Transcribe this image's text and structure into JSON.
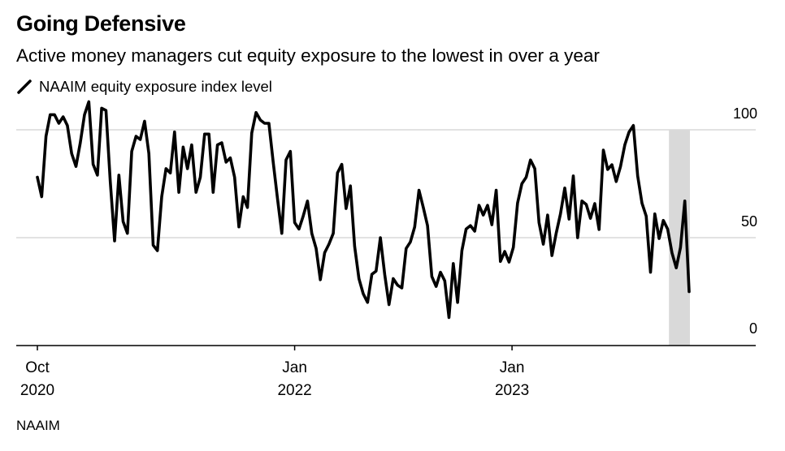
{
  "title": "Going Defensive",
  "subtitle": "Active money managers cut equity exposure to the lowest in over a year",
  "source": "NAAIM",
  "colors": {
    "line": "#000000",
    "grid": "#d9d9d9",
    "highlight": "#d9d9d9",
    "axis": "#000000"
  },
  "chart_data": {
    "type": "line",
    "title": "Going Defensive",
    "subtitle": "Active money managers cut equity exposure to the lowest in over a year",
    "xlabel": "",
    "ylabel": "",
    "x_unit": "week index (weekly observations from Oct 2020)",
    "ylim": [
      0,
      100
    ],
    "grid": true,
    "legend": {
      "placement": "top-left",
      "entries": [
        "NAAIM equity exposure index level"
      ]
    },
    "y_ticks": [
      {
        "value": 100,
        "label": "100"
      },
      {
        "value": 50,
        "label": "50"
      },
      {
        "value": 0,
        "label": "0"
      }
    ],
    "x_ticks": [
      {
        "index": 0,
        "month": "Oct",
        "year": "2020"
      },
      {
        "index": 60,
        "month": "Jan",
        "year": "2022"
      },
      {
        "index": 110.7,
        "month": "Jan",
        "year": "2023"
      }
    ],
    "highlight_range": [
      147.3,
      152
    ],
    "series": [
      {
        "name": "NAAIM equity exposure index level",
        "values": [
          78,
          69,
          97,
          107,
          107,
          103,
          106,
          102,
          89,
          83,
          94,
          107,
          113,
          84,
          79,
          110,
          109,
          76,
          48.5,
          79,
          57.5,
          52,
          90,
          97,
          95.5,
          104,
          89,
          46.5,
          44,
          69,
          82,
          80,
          99,
          71,
          92,
          82,
          93,
          71,
          78,
          98,
          98,
          71,
          93,
          94,
          85,
          87,
          78,
          55,
          69,
          64,
          98.5,
          108,
          104.5,
          103,
          103,
          85,
          68,
          52,
          86,
          90,
          57,
          54,
          60,
          67,
          52,
          45,
          30.5,
          43,
          47,
          52,
          80,
          84,
          63.5,
          74,
          46,
          31,
          24,
          20,
          33,
          34.5,
          50,
          33,
          19,
          31,
          28,
          26.7,
          45,
          48,
          55,
          72,
          64,
          55.6,
          32,
          27.4,
          34,
          30,
          13,
          38,
          20,
          44,
          54,
          55.6,
          53,
          65,
          60.5,
          65,
          56,
          72,
          39,
          43.6,
          38.7,
          45.5,
          66,
          75,
          78,
          86,
          82,
          57,
          47,
          60.5,
          41.7,
          52,
          61,
          73,
          58.6,
          78.6,
          50,
          67,
          65.4,
          59,
          65.8,
          53.8,
          90.6,
          81.6,
          83.8,
          76,
          83,
          93,
          99,
          102,
          78.6,
          66,
          60,
          34,
          61,
          49.6,
          58,
          54,
          43,
          36,
          45.5,
          67,
          25
        ]
      }
    ]
  }
}
